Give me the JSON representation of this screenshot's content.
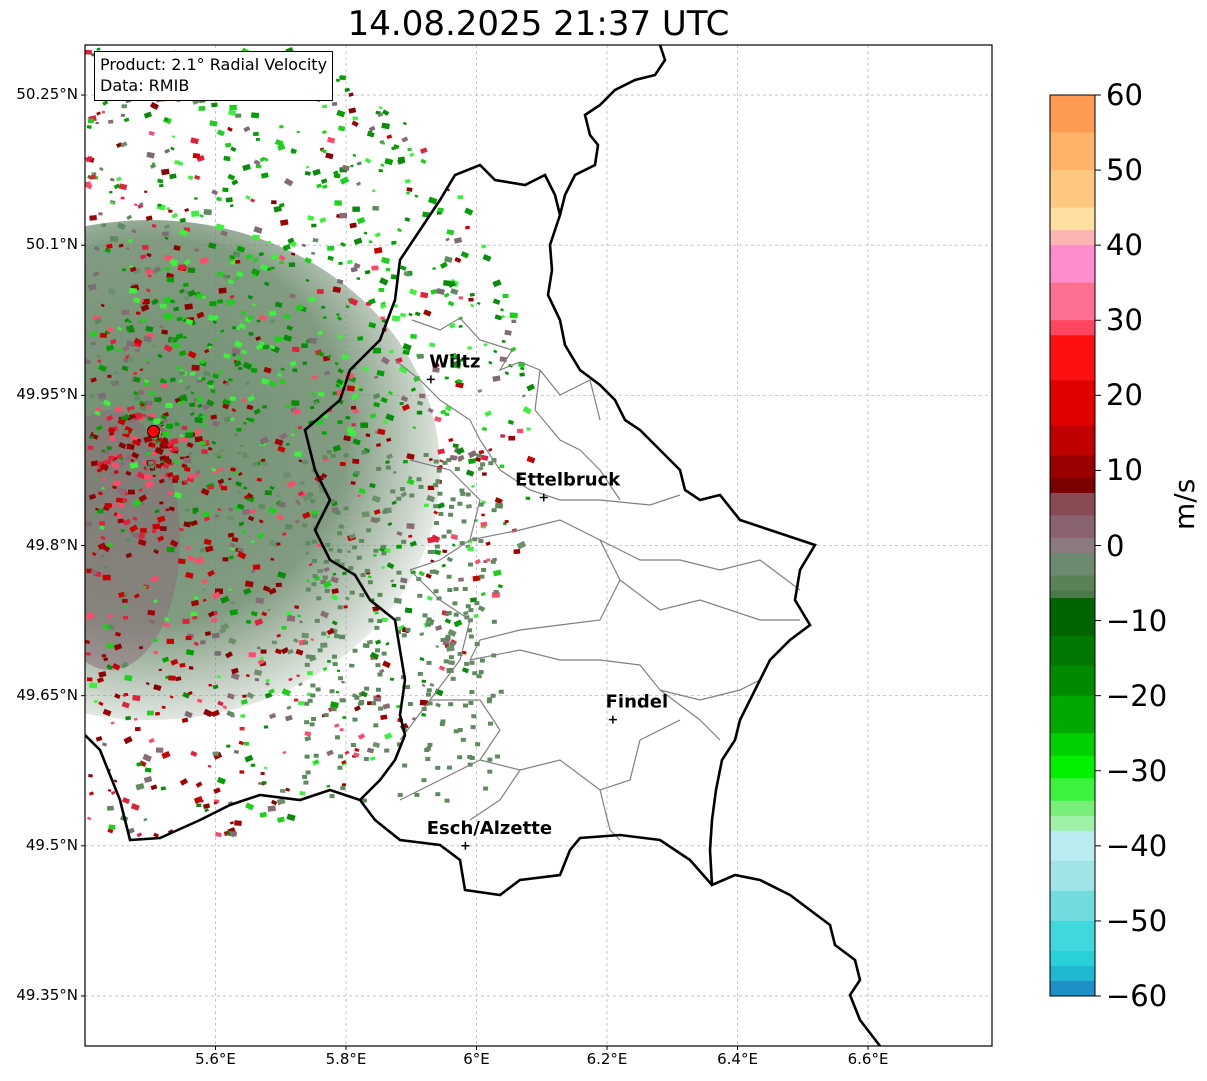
{
  "title": "14.08.2025 21:37 UTC",
  "infobox": {
    "product": "Product: 2.1° Radial Velocity",
    "data": "Data: RMIB"
  },
  "map": {
    "lon_range": [
      5.4,
      6.79
    ],
    "lat_range": [
      49.3,
      50.3
    ],
    "lat_ticks": [
      {
        "value": 50.25,
        "label": "50.25°N"
      },
      {
        "value": 50.1,
        "label": "50.1°N"
      },
      {
        "value": 49.95,
        "label": "49.95°N"
      },
      {
        "value": 49.8,
        "label": "49.8°N"
      },
      {
        "value": 49.65,
        "label": "49.65°N"
      },
      {
        "value": 49.5,
        "label": "49.5°N"
      },
      {
        "value": 49.35,
        "label": "49.35°N"
      }
    ],
    "lon_ticks": [
      {
        "value": 5.6,
        "label": "5.6°E"
      },
      {
        "value": 5.8,
        "label": "5.8°E"
      },
      {
        "value": 6.0,
        "label": "6°E"
      },
      {
        "value": 6.2,
        "label": "6.2°E"
      },
      {
        "value": 6.4,
        "label": "6.4°E"
      },
      {
        "value": 6.6,
        "label": "6.6°E"
      }
    ],
    "gridlines": true,
    "radar_site": {
      "lon": 5.505,
      "lat": 49.914,
      "color": "#ff0000"
    },
    "cities": [
      {
        "name": "Wiltz",
        "lon": 5.93,
        "lat": 49.966
      },
      {
        "name": "Ettelbruck",
        "lon": 6.103,
        "lat": 49.848
      },
      {
        "name": "Findel",
        "lon": 6.209,
        "lat": 49.626
      },
      {
        "name": "Esch/Alzette",
        "lon": 5.983,
        "lat": 49.5
      }
    ]
  },
  "colorbar": {
    "unit": "m/s",
    "min": -60,
    "max": 60,
    "tick_labels": [
      "60",
      "50",
      "40",
      "30",
      "20",
      "10",
      "0",
      "−10",
      "−20",
      "−30",
      "−40",
      "−50",
      "−60"
    ],
    "tick_values": [
      60,
      50,
      40,
      30,
      20,
      10,
      0,
      -10,
      -20,
      -30,
      -40,
      -50,
      -60
    ]
  }
}
